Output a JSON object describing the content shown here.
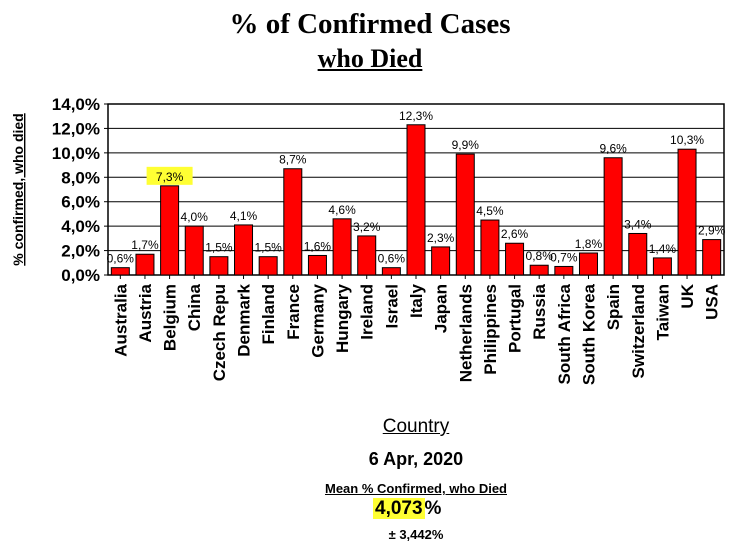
{
  "header": {
    "title": "% of Confirmed Cases",
    "subtitle": "who Died"
  },
  "footer": {
    "date": "6 Apr, 2020",
    "mean_label": "Mean % Confirmed, who Died",
    "mean_value": "4,073",
    "mean_suffix": "%",
    "stddev": "± 3,442%"
  },
  "chart_data": {
    "type": "bar",
    "title": "% of Confirmed Cases who Died",
    "xlabel": "Country",
    "ylabel": "% confirmed, who died",
    "ylim": [
      0,
      14
    ],
    "yticks": [
      "0,0%",
      "2,0%",
      "4,0%",
      "6,0%",
      "8,0%",
      "10,0%",
      "12,0%",
      "14,0%"
    ],
    "bar_color": "#ff0000",
    "highlight_color": "#ffff33",
    "highlighted_category": "Belgium",
    "categories": [
      "Australia",
      "Austria",
      "Belgium",
      "China",
      "Czech Repu",
      "Denmark",
      "Finland",
      "France",
      "Germany",
      "Hungary",
      "Ireland",
      "Israel",
      "Italy",
      "Japan",
      "Netherlands",
      "Philippines",
      "Portugal",
      "Russia",
      "South Africa",
      "South Korea",
      "Spain",
      "Switzerland",
      "Taiwan",
      "UK",
      "USA"
    ],
    "values": [
      0.6,
      1.7,
      7.3,
      4.0,
      1.5,
      4.1,
      1.5,
      8.7,
      1.6,
      4.6,
      3.2,
      0.6,
      12.3,
      2.3,
      9.9,
      4.5,
      2.6,
      0.8,
      0.7,
      1.8,
      9.6,
      3.4,
      1.4,
      10.3,
      2.9
    ],
    "data_labels": [
      "0,6%",
      "1,7%",
      "7,3%",
      "4,0%",
      "1,5%",
      "4,1%",
      "1,5%",
      "8,7%",
      "1,6%",
      "4,6%",
      "3,2%",
      "0,6%",
      "12,3%",
      "2,3%",
      "9,9%",
      "4,5%",
      "2,6%",
      "0,8%",
      "0,7%",
      "1,8%",
      "9,6%",
      "3,4%",
      "1,4%",
      "10,3%",
      "2,9%"
    ]
  }
}
